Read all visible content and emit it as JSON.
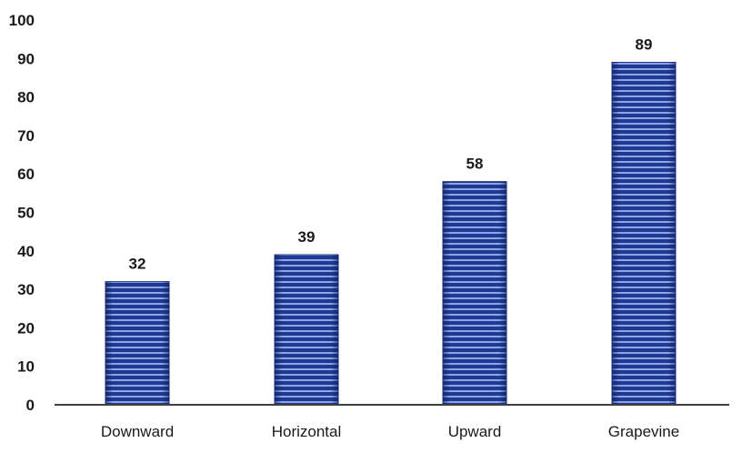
{
  "chart_data": {
    "type": "bar",
    "categories": [
      "Downward",
      "Horizontal",
      "Upward",
      "Grapevine"
    ],
    "values": [
      32,
      39,
      58,
      89
    ],
    "data_labels": [
      "32",
      "39",
      "58",
      "89"
    ],
    "title": "",
    "xlabel": "",
    "ylabel": "",
    "ylim": [
      0,
      100
    ],
    "yticks": [
      0,
      10,
      20,
      30,
      40,
      50,
      60,
      70,
      80,
      90,
      100
    ],
    "ytick_labels": [
      "0",
      "10",
      "20",
      "30",
      "40",
      "50",
      "60",
      "70",
      "80",
      "90",
      "100"
    ],
    "grid": false,
    "legend": "none",
    "bar_pattern": "horizontal-stripes",
    "colors": {
      "bar_dark": "#1f3a93",
      "bar_light": "#8fa6e6",
      "axis": "#404040"
    }
  }
}
